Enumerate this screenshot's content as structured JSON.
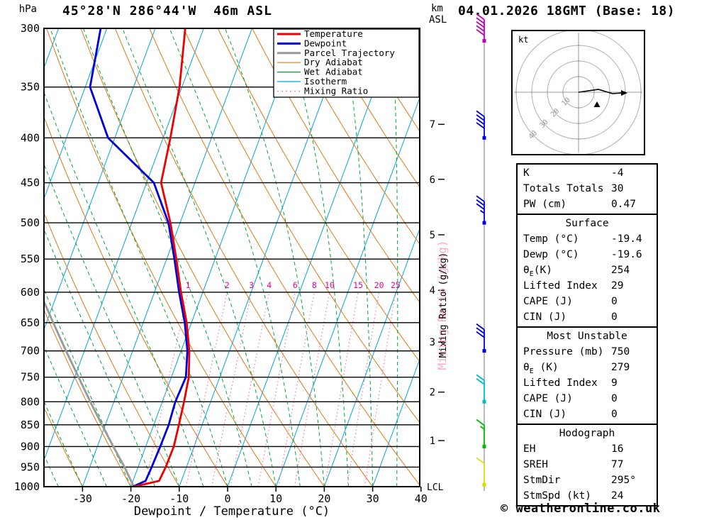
{
  "header": {
    "station_title": "45°28'N 286°44'W  46m ASL",
    "datetime_title": "04.01.2026 18GMT (Base: 18)",
    "pressure_unit": "hPa",
    "height_unit_line1": "km",
    "height_unit_line2": "ASL"
  },
  "axes": {
    "pressure_ticks": [
      300,
      350,
      400,
      450,
      500,
      550,
      600,
      650,
      700,
      750,
      800,
      850,
      900,
      950,
      1000
    ],
    "temp_ticks": [
      -30,
      -20,
      -10,
      0,
      10,
      20,
      30,
      40
    ],
    "xlabel": "Dewpoint / Temperature (°C)",
    "mixing_axis_label": "Mixing Ratio (g/kg)",
    "lcl_label": "LCL",
    "km_ticks": [
      {
        "km": 7,
        "p": 386
      },
      {
        "km": 6,
        "p": 446
      },
      {
        "km": 5,
        "p": 516
      },
      {
        "km": 4,
        "p": 597
      },
      {
        "km": 3,
        "p": 684
      },
      {
        "km": 2,
        "p": 780
      },
      {
        "km": 1,
        "p": 886
      }
    ]
  },
  "legend": {
    "items": [
      {
        "label": "Temperature",
        "color": "#ee0000",
        "width": 3,
        "dash": ""
      },
      {
        "label": "Dewpoint",
        "color": "#0000dd",
        "width": 3,
        "dash": ""
      },
      {
        "label": "Parcel Trajectory",
        "color": "#9a9a9a",
        "width": 3,
        "dash": ""
      },
      {
        "label": "Dry Adiabat",
        "color": "#e07818",
        "width": 1.2,
        "dash": ""
      },
      {
        "label": "Wet Adiabat",
        "color": "#00a830",
        "width": 1.2,
        "dash": ""
      },
      {
        "label": "Isotherm",
        "color": "#00a5e0",
        "width": 1.2,
        "dash": ""
      },
      {
        "label": "Mixing Ratio",
        "color": "#ff7ab8",
        "width": 1.4,
        "dash": "2,4"
      }
    ]
  },
  "chart_data": {
    "type": "line",
    "subtype": "skew-t-log-p sounding",
    "title": "45°28'N 286°44'W 46m ASL — 04.01.2026 18GMT (Base: 18)",
    "pressure_axis_hPa": [
      300,
      1000
    ],
    "temp_axis_C": [
      -30,
      40
    ],
    "isotherm_step_C": 10,
    "dry_adiabat_step_C": 10,
    "wet_adiabat_step_C": 5,
    "mixing_ratio_g_kg": [
      1,
      2,
      3,
      4,
      6,
      8,
      10,
      15,
      20,
      25
    ],
    "temperature_profile": [
      [
        300,
        -43.8
      ],
      [
        350,
        -40.5
      ],
      [
        400,
        -38.5
      ],
      [
        450,
        -37.0
      ],
      [
        500,
        -32.0
      ],
      [
        550,
        -28.0
      ],
      [
        600,
        -24.5
      ],
      [
        650,
        -21.0
      ],
      [
        700,
        -18.3
      ],
      [
        750,
        -16.4
      ],
      [
        800,
        -15.5
      ],
      [
        850,
        -14.8
      ],
      [
        900,
        -14.2
      ],
      [
        950,
        -14.3
      ],
      [
        985,
        -14.6
      ],
      [
        1000,
        -19.4
      ]
    ],
    "dewpoint_profile": [
      [
        300,
        -61.3
      ],
      [
        350,
        -59.0
      ],
      [
        400,
        -51.4
      ],
      [
        450,
        -38.5
      ],
      [
        500,
        -32.4
      ],
      [
        550,
        -28.4
      ],
      [
        600,
        -24.9
      ],
      [
        650,
        -21.4
      ],
      [
        700,
        -18.7
      ],
      [
        750,
        -17.0
      ],
      [
        800,
        -17.3
      ],
      [
        850,
        -16.9
      ],
      [
        900,
        -17.0
      ],
      [
        950,
        -17.2
      ],
      [
        985,
        -17.4
      ],
      [
        1000,
        -19.6
      ]
    ],
    "parcel_profile": [
      [
        600,
        -53.7
      ],
      [
        650,
        -48.6
      ],
      [
        700,
        -43.8
      ],
      [
        750,
        -39.2
      ],
      [
        800,
        -34.9
      ],
      [
        850,
        -30.7
      ],
      [
        900,
        -26.7
      ],
      [
        950,
        -22.8
      ],
      [
        1000,
        -19.4
      ]
    ],
    "wind_barbs": [
      {
        "p": 310,
        "speed_kt": 50,
        "color": "#bb00bb"
      },
      {
        "p": 400,
        "speed_kt": 40,
        "color": "#0000dd"
      },
      {
        "p": 500,
        "speed_kt": 35,
        "color": "#0000dd"
      },
      {
        "p": 700,
        "speed_kt": 30,
        "color": "#0000dd"
      },
      {
        "p": 800,
        "speed_kt": 20,
        "color": "#00bbcc"
      },
      {
        "p": 900,
        "speed_kt": 15,
        "color": "#00bb00"
      },
      {
        "p": 995,
        "speed_kt": 10,
        "color": "#dddd00"
      }
    ]
  },
  "hodograph": {
    "unit_label": "kt",
    "rings_kt": [
      10,
      20,
      30,
      40
    ],
    "trace": [
      [
        0,
        0
      ],
      [
        28,
        -4
      ],
      [
        48,
        2
      ],
      [
        62,
        1
      ]
    ],
    "storm_marker": [
      26,
      18
    ]
  },
  "tables": [
    {
      "header": null,
      "rows": [
        [
          "K",
          "-4"
        ],
        [
          "Totals Totals",
          "30"
        ],
        [
          "PW (cm)",
          "0.47"
        ]
      ]
    },
    {
      "header": "Surface",
      "rows": [
        [
          "Temp (°C)",
          "-19.4"
        ],
        [
          "Dewp (°C)",
          "-19.6"
        ],
        [
          "θE(K)",
          "254"
        ],
        [
          "Lifted Index",
          "29"
        ],
        [
          "CAPE (J)",
          "0"
        ],
        [
          "CIN (J)",
          "0"
        ]
      ]
    },
    {
      "header": "Most Unstable",
      "rows": [
        [
          "Pressure (mb)",
          "750"
        ],
        [
          "θE (K)",
          "279"
        ],
        [
          "Lifted Index",
          "9"
        ],
        [
          "CAPE (J)",
          "0"
        ],
        [
          "CIN (J)",
          "0"
        ]
      ]
    },
    {
      "header": "Hodograph",
      "rows": [
        [
          "EH",
          "16"
        ],
        [
          "SREH",
          "77"
        ],
        [
          "StmDir",
          "295°"
        ],
        [
          "StmSpd (kt)",
          "24"
        ]
      ]
    }
  ],
  "footer": {
    "copyright": "© weatheronline.co.uk"
  },
  "colors": {
    "temperature": "#ee0000",
    "dewpoint": "#0000dd",
    "parcel": "#9a9a9a",
    "dry_adiabat": "#e07818",
    "wet_adiabat": "#00a830",
    "isotherm": "#00a5e0",
    "mixing_ratio": "#ff7ab8",
    "mixing_label": "#ee0090",
    "mixing_axis_pink": "#ffaacc",
    "gridline": "#000000",
    "barb_axis": "#777777"
  }
}
